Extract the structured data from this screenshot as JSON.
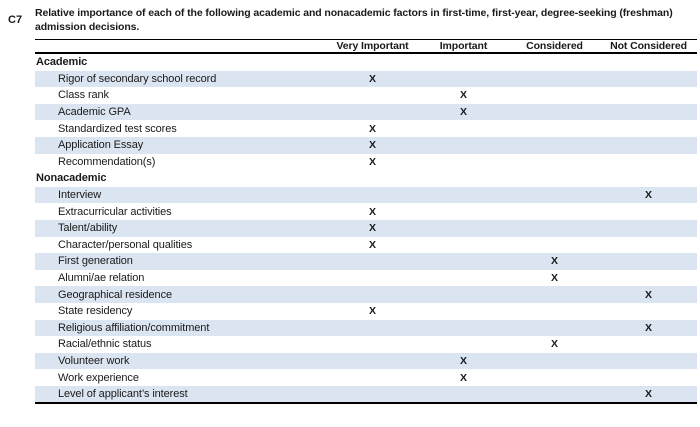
{
  "question": {
    "id": "C7",
    "title": "Relative importance of each of the following academic and nonacademic factors in first-time, first-year, degree-seeking (freshman) admission decisions."
  },
  "table": {
    "columns": [
      "Very Important",
      "Important",
      "Considered",
      "Not Considered"
    ],
    "mark": "X",
    "colors": {
      "row_shade": "#dbe5f1",
      "rule": "#000000"
    },
    "sections": [
      {
        "name": "Academic",
        "rows": [
          {
            "label": "Rigor of secondary school record",
            "value": "Very Important"
          },
          {
            "label": "Class rank",
            "value": "Important"
          },
          {
            "label": "Academic GPA",
            "value": "Important"
          },
          {
            "label": "Standardized test scores",
            "value": "Very Important"
          },
          {
            "label": "Application Essay",
            "value": "Very Important"
          },
          {
            "label": "Recommendation(s)",
            "value": "Very Important"
          }
        ]
      },
      {
        "name": "Nonacademic",
        "rows": [
          {
            "label": "Interview",
            "value": "Not Considered"
          },
          {
            "label": "Extracurricular activities",
            "value": "Very Important"
          },
          {
            "label": "Talent/ability",
            "value": "Very Important"
          },
          {
            "label": "Character/personal qualities",
            "value": "Very Important"
          },
          {
            "label": "First generation",
            "value": "Considered"
          },
          {
            "label": "Alumni/ae relation",
            "value": "Considered"
          },
          {
            "label": "Geographical residence",
            "value": "Not Considered"
          },
          {
            "label": "State residency",
            "value": "Very Important"
          },
          {
            "label": "Religious affiliation/commitment",
            "value": "Not Considered"
          },
          {
            "label": "Racial/ethnic status",
            "value": "Considered"
          },
          {
            "label": "Volunteer work",
            "value": "Important"
          },
          {
            "label": "Work experience",
            "value": "Important"
          },
          {
            "label": "Level of applicant’s interest",
            "value": "Not Considered"
          }
        ]
      }
    ]
  }
}
